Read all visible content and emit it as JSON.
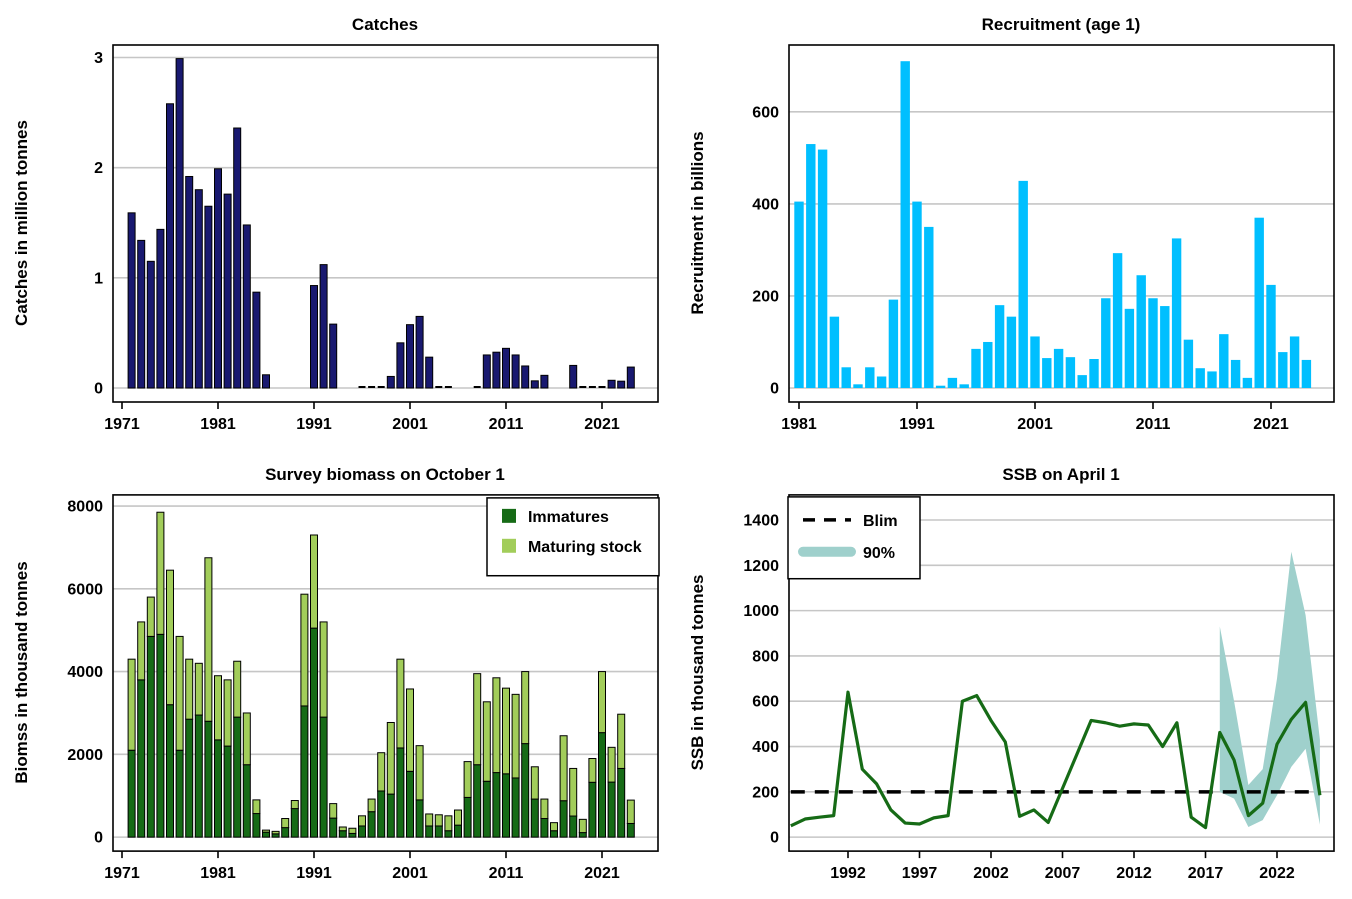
{
  "style": {
    "background": "#ffffff",
    "grid_color": "#c6c6c6",
    "axis_color": "#000000",
    "text_color": "#000000",
    "catches_bar_color": "#191970",
    "catches_bar_border": "#000000",
    "recruitment_bar_color": "#00bfff",
    "immatures_color": "#166b16",
    "maturing_color": "#a2cd5a",
    "ssb_line_color": "#166b16",
    "blim_color": "#000000",
    "band_color": "#9fd0cc"
  },
  "chart_data": [
    {
      "type": "bar",
      "title": "Catches",
      "ylabel": "Catches in million tonnes",
      "xlabel": "",
      "grid": true,
      "legend_position": "none",
      "ylim": [
        0,
        3.05
      ],
      "y_ticks": [
        0,
        1,
        2,
        3
      ],
      "x_ticks": [
        1971,
        1981,
        1991,
        2001,
        2011,
        2021
      ],
      "bar_color": "#191970",
      "bar_border": "#000000",
      "x": [
        1972,
        1973,
        1974,
        1975,
        1976,
        1977,
        1978,
        1979,
        1980,
        1981,
        1982,
        1983,
        1984,
        1985,
        1986,
        1987,
        1988,
        1989,
        1990,
        1991,
        1992,
        1993,
        1994,
        1995,
        1996,
        1997,
        1998,
        1999,
        2000,
        2001,
        2002,
        2003,
        2004,
        2005,
        2006,
        2007,
        2008,
        2009,
        2010,
        2011,
        2012,
        2013,
        2014,
        2015,
        2016,
        2017,
        2018,
        2019,
        2020,
        2021,
        2022,
        2023,
        2024
      ],
      "values": [
        1.59,
        1.34,
        1.15,
        1.44,
        2.58,
        2.99,
        1.92,
        1.8,
        1.65,
        1.99,
        1.76,
        2.36,
        1.48,
        0.87,
        0.12,
        0,
        0,
        0,
        0,
        0.93,
        1.12,
        0.58,
        0,
        0,
        0.005,
        0.005,
        0.008,
        0.105,
        0.41,
        0.575,
        0.65,
        0.28,
        0.005,
        0.005,
        0,
        0,
        0.012,
        0.3,
        0.325,
        0.36,
        0.3,
        0.2,
        0.065,
        0.115,
        0,
        0,
        0.205,
        0.005,
        0.005,
        0.005,
        0.07,
        0.062,
        0.19
      ]
    },
    {
      "type": "bar",
      "title": "Recruitment (age 1)",
      "ylabel": "Recruitment in billions",
      "xlabel": "",
      "grid": true,
      "legend_position": "none",
      "ylim": [
        0,
        730
      ],
      "y_ticks": [
        0,
        200,
        400,
        600
      ],
      "x_ticks": [
        1981,
        1991,
        2001,
        2011,
        2021
      ],
      "bar_color": "#00bfff",
      "bar_border": null,
      "x": [
        1981,
        1982,
        1983,
        1984,
        1985,
        1986,
        1987,
        1988,
        1989,
        1990,
        1991,
        1992,
        1993,
        1994,
        1995,
        1996,
        1997,
        1998,
        1999,
        2000,
        2001,
        2002,
        2003,
        2004,
        2005,
        2006,
        2007,
        2008,
        2009,
        2010,
        2011,
        2012,
        2013,
        2014,
        2015,
        2016,
        2017,
        2018,
        2019,
        2020,
        2021,
        2022,
        2023,
        2024
      ],
      "values": [
        405,
        530,
        518,
        155,
        45,
        8,
        45,
        25,
        192,
        710,
        405,
        350,
        5,
        22,
        8,
        85,
        100,
        180,
        155,
        450,
        112,
        65,
        85,
        67,
        28,
        63,
        195,
        293,
        172,
        245,
        195,
        178,
        325,
        105,
        43,
        36,
        117,
        61,
        22,
        370,
        224,
        78,
        112,
        61
      ]
    },
    {
      "type": "stacked-bar",
      "title": "Survey biomass on October 1",
      "ylabel": "Biomss in thousand tonnes",
      "xlabel": "",
      "grid": true,
      "legend_position": "top-right",
      "ylim": [
        0,
        8100
      ],
      "y_ticks": [
        0,
        2000,
        4000,
        6000,
        8000
      ],
      "x_ticks": [
        1971,
        1981,
        1991,
        2001,
        2011,
        2021
      ],
      "bar_border": "#000000",
      "x": [
        1972,
        1973,
        1974,
        1975,
        1976,
        1977,
        1978,
        1979,
        1980,
        1981,
        1982,
        1983,
        1984,
        1985,
        1986,
        1987,
        1988,
        1989,
        1990,
        1991,
        1992,
        1993,
        1994,
        1995,
        1996,
        1997,
        1998,
        1999,
        2000,
        2001,
        2002,
        2003,
        2004,
        2005,
        2006,
        2007,
        2008,
        2009,
        2010,
        2011,
        2012,
        2013,
        2014,
        2015,
        2016,
        2017,
        2018,
        2019,
        2020,
        2021,
        2022,
        2023,
        2024
      ],
      "series": [
        {
          "name": "Immatures",
          "color": "#166b16",
          "values": [
            2100,
            3800,
            4850,
            4900,
            3200,
            2100,
            2850,
            2950,
            2800,
            2350,
            2200,
            2900,
            1750,
            570,
            120,
            80,
            230,
            690,
            3170,
            5050,
            2900,
            460,
            155,
            90,
            270,
            615,
            1115,
            1040,
            2155,
            1590,
            900,
            270,
            270,
            155,
            290,
            960,
            1750,
            1350,
            1560,
            1530,
            1430,
            2260,
            920,
            450,
            155,
            880,
            510,
            110,
            1325,
            2525,
            1330,
            1660,
            330
          ]
        },
        {
          "name": "Maturing stock",
          "color": "#a2cd5a",
          "values": [
            2200,
            1400,
            950,
            2950,
            3250,
            2750,
            1450,
            1250,
            3950,
            1550,
            1600,
            1350,
            1250,
            330,
            50,
            60,
            220,
            195,
            2700,
            2250,
            2300,
            350,
            90,
            125,
            245,
            305,
            925,
            1730,
            2145,
            1990,
            1310,
            290,
            270,
            360,
            365,
            865,
            2200,
            1920,
            2290,
            2070,
            2020,
            1740,
            780,
            470,
            195,
            1570,
            1150,
            320,
            575,
            1475,
            840,
            1310,
            565
          ]
        }
      ]
    },
    {
      "type": "line",
      "title": "SSB on April 1",
      "ylabel": "SSB in thousand tonnes",
      "xlabel": "",
      "grid": true,
      "legend_position": "top-left",
      "ylim": [
        0,
        1480
      ],
      "y_ticks": [
        0,
        200,
        400,
        600,
        800,
        1000,
        1200,
        1400
      ],
      "x_ticks": [
        1992,
        1997,
        2002,
        2007,
        2012,
        2017,
        2022
      ],
      "x": [
        1988,
        1989,
        1990,
        1991,
        1992,
        1993,
        1994,
        1995,
        1996,
        1997,
        1998,
        1999,
        2000,
        2001,
        2002,
        2003,
        2004,
        2005,
        2006,
        2007,
        2008,
        2009,
        2010,
        2011,
        2012,
        2013,
        2014,
        2015,
        2016,
        2017,
        2018,
        2019,
        2020,
        2021,
        2022,
        2023,
        2024,
        2025
      ],
      "series": [
        {
          "name": "SSB",
          "color": "#166b16",
          "values": [
            50,
            80,
            88,
            95,
            640,
            300,
            235,
            120,
            62,
            58,
            85,
            95,
            600,
            625,
            515,
            420,
            92,
            120,
            65,
            215,
            365,
            515,
            505,
            490,
            500,
            495,
            400,
            505,
            88,
            42,
            462,
            340,
            95,
            150,
            410,
            520,
            595,
            185
          ]
        }
      ],
      "blim": {
        "label": "Blim",
        "value": 200,
        "color": "#000000"
      },
      "band": {
        "label": "90%",
        "color": "#9fd0cc",
        "x": [
          2018,
          2019,
          2020,
          2021,
          2022,
          2023,
          2024,
          2025
        ],
        "upper": [
          930,
          600,
          230,
          300,
          700,
          1260,
          980,
          430
        ],
        "lower": [
          200,
          170,
          45,
          75,
          185,
          310,
          390,
          55
        ]
      }
    }
  ]
}
